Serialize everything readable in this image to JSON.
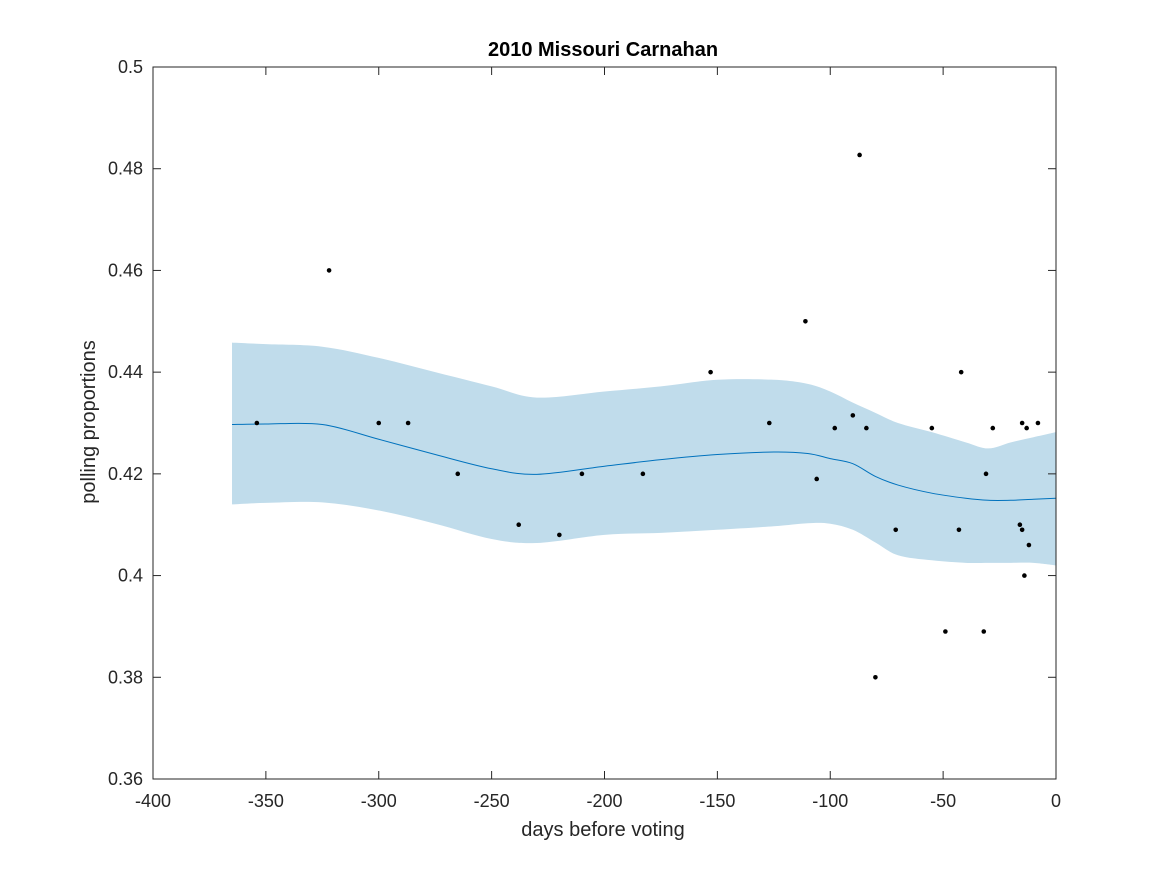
{
  "chart_data": {
    "type": "line",
    "title": "2010 Missouri Carnahan",
    "xlabel": "days before voting",
    "ylabel": "polling proportions",
    "xlim": [
      -400,
      0
    ],
    "ylim": [
      0.36,
      0.5
    ],
    "x_ticks": [
      -400,
      -350,
      -300,
      -250,
      -200,
      -150,
      -100,
      -50,
      0
    ],
    "y_ticks": [
      0.36,
      0.38,
      0.4,
      0.42,
      0.44,
      0.46,
      0.48,
      0.5
    ],
    "x_tick_labels": [
      "-400",
      "-350",
      "-300",
      "-250",
      "-200",
      "-150",
      "-100",
      "-50",
      "0"
    ],
    "y_tick_labels": [
      "0.36",
      "0.38",
      "0.4",
      "0.42",
      "0.44",
      "0.46",
      "0.48",
      "0.5"
    ],
    "grid": false,
    "colors": {
      "band": "#c0dceb",
      "line": "#0072bd",
      "points": "#000000",
      "axes": "#262626"
    },
    "trend": {
      "x": [
        -365,
        -350,
        -325,
        -300,
        -275,
        -250,
        -230,
        -200,
        -175,
        -150,
        -125,
        -110,
        -100,
        -90,
        -80,
        -70,
        -55,
        -40,
        -30,
        -20,
        -10,
        0
      ],
      "mean": [
        0.4297,
        0.4298,
        0.4297,
        0.4268,
        0.4238,
        0.421,
        0.4199,
        0.4215,
        0.4228,
        0.4238,
        0.4243,
        0.424,
        0.423,
        0.422,
        0.4195,
        0.4178,
        0.4162,
        0.4152,
        0.4148,
        0.4148,
        0.415,
        0.4152
      ],
      "upper": [
        0.4458,
        0.4455,
        0.445,
        0.4428,
        0.44,
        0.4372,
        0.435,
        0.4362,
        0.4372,
        0.4385,
        0.4385,
        0.4377,
        0.4362,
        0.434,
        0.432,
        0.43,
        0.4282,
        0.4262,
        0.425,
        0.4262,
        0.4272,
        0.4282
      ],
      "lower": [
        0.414,
        0.4143,
        0.4144,
        0.4128,
        0.4102,
        0.4072,
        0.4064,
        0.408,
        0.4084,
        0.409,
        0.4097,
        0.4103,
        0.4102,
        0.409,
        0.4065,
        0.404,
        0.403,
        0.4025,
        0.4025,
        0.4025,
        0.4025,
        0.402
      ]
    },
    "points": {
      "x": [
        -354,
        -322,
        -300,
        -287,
        -265,
        -238,
        -220,
        -210,
        -183,
        -153,
        -127,
        -111,
        -106,
        -98,
        -90,
        -87,
        -84,
        -80,
        -71,
        -55,
        -49,
        -43,
        -42,
        -32,
        -31,
        -28,
        -16,
        -15,
        -15,
        -14,
        -13,
        -12,
        -8
      ],
      "y": [
        0.43,
        0.46,
        0.43,
        0.43,
        0.42,
        0.41,
        0.408,
        0.42,
        0.42,
        0.44,
        0.43,
        0.45,
        0.419,
        0.429,
        0.4315,
        0.4827,
        0.429,
        0.38,
        0.409,
        0.429,
        0.389,
        0.409,
        0.44,
        0.389,
        0.42,
        0.429,
        0.41,
        0.43,
        0.409,
        0.4,
        0.429,
        0.406,
        0.43
      ]
    }
  }
}
